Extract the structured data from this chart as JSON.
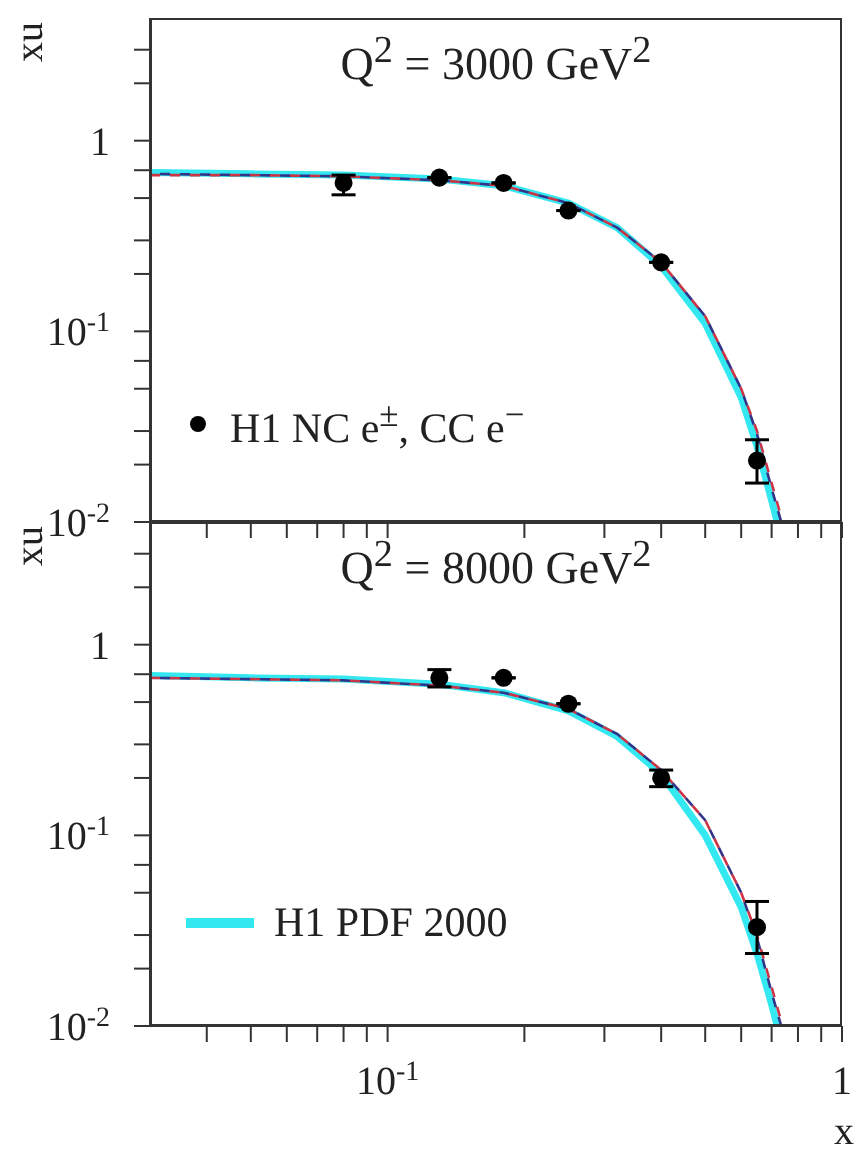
{
  "chart_data": [
    {
      "type": "line",
      "title": "Q$^{2}$ = 3000 GeV$^{2}$",
      "ylabel": "xu",
      "tick_labels": "y",
      "legend": "bottom left",
      "log": "xy",
      "xlim": [
        0.03,
        1
      ],
      "ylim": [
        0.01,
        4.4
      ],
      "xticks": [
        {
          "value": 0.04,
          "label": null
        },
        {
          "value": 0.05,
          "label": null
        },
        {
          "value": 0.06,
          "label": null
        },
        {
          "value": 0.07,
          "label": null
        },
        {
          "value": 0.08,
          "label": null
        },
        {
          "value": 0.09,
          "label": null
        },
        {
          "value": 0.1,
          "label": null
        },
        {
          "value": 0.2,
          "label": null
        },
        {
          "value": 0.3,
          "label": null
        },
        {
          "value": 0.4,
          "label": null
        },
        {
          "value": 0.5,
          "label": null
        },
        {
          "value": 0.6,
          "label": null
        },
        {
          "value": 0.7,
          "label": null
        },
        {
          "value": 0.8,
          "label": null
        },
        {
          "value": 0.9,
          "label": null
        },
        {
          "value": 1,
          "label": null
        }
      ],
      "yticks": [
        {
          "value": 0.01,
          "label": "10$^{-2}$"
        },
        {
          "value": 0.02,
          "label": null
        },
        {
          "value": 0.03,
          "label": null
        },
        {
          "value": 0.05,
          "label": null
        },
        {
          "value": 0.07,
          "label": null
        },
        {
          "value": 0.1,
          "label": "10$^{-1}$"
        },
        {
          "value": 0.2,
          "label": null
        },
        {
          "value": 0.3,
          "label": null
        },
        {
          "value": 0.5,
          "label": null
        },
        {
          "value": 0.7,
          "label": null
        },
        1,
        {
          "value": 2,
          "label": null
        },
        {
          "value": 3,
          "label": null
        }
      ],
      "series": [
        {
          "color": "#33e8f0",
          "line_style": "solid",
          "x": [
            0.03,
            0.05,
            0.08,
            0.13,
            0.18,
            0.25,
            0.32,
            0.4,
            0.5,
            0.6,
            0.65,
            0.7,
            0.72
          ],
          "values": [
            0.68,
            0.67,
            0.66,
            0.63,
            0.58,
            0.47,
            0.35,
            0.22,
            0.11,
            0.045,
            0.025,
            0.013,
            0.01
          ]
        },
        {
          "color": "#cc3344",
          "line_style": "dashed",
          "x": [
            0.03,
            0.05,
            0.08,
            0.13,
            0.18,
            0.25,
            0.32,
            0.4,
            0.5,
            0.6,
            0.65,
            0.7,
            0.74
          ],
          "values": [
            0.66,
            0.66,
            0.65,
            0.62,
            0.58,
            0.47,
            0.35,
            0.23,
            0.12,
            0.05,
            0.03,
            0.016,
            0.01
          ]
        },
        {
          "color": "#333388",
          "line_style": "dashed",
          "x": [
            0.03,
            0.05,
            0.08,
            0.13,
            0.18,
            0.25,
            0.32,
            0.4,
            0.5,
            0.6,
            0.65,
            0.7,
            0.735
          ],
          "values": [
            0.67,
            0.66,
            0.65,
            0.62,
            0.58,
            0.47,
            0.35,
            0.23,
            0.12,
            0.05,
            0.029,
            0.015,
            0.01
          ]
        },
        {
          "type": "scatter",
          "name": "H1 NC e$^{±}$, CC e$^{−}$",
          "color": "#000000",
          "marker": "circle",
          "x": [
            0.08,
            0.13,
            0.18,
            0.25,
            0.4,
            0.65
          ],
          "values": [
            0.6,
            0.64,
            0.6,
            0.43,
            0.23,
            0.021
          ],
          "errors": [
            [
              0.52,
              0.66
            ],
            null,
            null,
            null,
            null,
            [
              0.016,
              0.027
            ]
          ]
        }
      ]
    },
    {
      "type": "line",
      "title": "Q$^{2}$ = 8000 GeV$^{2}$",
      "ylabel": "xu",
      "xlabel": "x",
      "legend": "bottom left",
      "log": "xy",
      "xlim": [
        0.03,
        1
      ],
      "ylim": [
        0.01,
        4.4
      ],
      "xticks": [
        {
          "value": 0.04,
          "label": null
        },
        {
          "value": 0.05,
          "label": null
        },
        {
          "value": 0.06,
          "label": null
        },
        {
          "value": 0.07,
          "label": null
        },
        {
          "value": 0.08,
          "label": null
        },
        {
          "value": 0.09,
          "label": null
        },
        {
          "value": 0.1,
          "label": "10$^{-1}$"
        },
        {
          "value": 0.2,
          "label": null
        },
        {
          "value": 0.3,
          "label": null
        },
        {
          "value": 0.4,
          "label": null
        },
        {
          "value": 0.5,
          "label": null
        },
        {
          "value": 0.6,
          "label": null
        },
        {
          "value": 0.7,
          "label": null
        },
        {
          "value": 0.8,
          "label": null
        },
        {
          "value": 0.9,
          "label": null
        },
        1
      ],
      "yticks": [
        {
          "value": 0.01,
          "label": "10$^{-2}$"
        },
        {
          "value": 0.02,
          "label": null
        },
        {
          "value": 0.03,
          "label": null
        },
        {
          "value": 0.05,
          "label": null
        },
        {
          "value": 0.07,
          "label": null
        },
        {
          "value": 0.1,
          "label": "10$^{-1}$"
        },
        {
          "value": 0.2,
          "label": null
        },
        {
          "value": 0.3,
          "label": null
        },
        {
          "value": 0.5,
          "label": null
        },
        {
          "value": 0.7,
          "label": null
        },
        1,
        {
          "value": 2,
          "label": null
        },
        {
          "value": 3,
          "label": null
        }
      ],
      "series": [
        {
          "name": "H1 PDF 2000",
          "color": "#33e8f0",
          "line_style": "solid",
          "x": [
            0.03,
            0.05,
            0.08,
            0.13,
            0.18,
            0.25,
            0.32,
            0.4,
            0.5,
            0.6,
            0.65,
            0.7,
            0.72
          ],
          "values": [
            0.69,
            0.67,
            0.66,
            0.62,
            0.56,
            0.45,
            0.33,
            0.21,
            0.1,
            0.042,
            0.024,
            0.013,
            0.01
          ]
        },
        {
          "color": "#cc3344",
          "line_style": "dashed",
          "x": [
            0.03,
            0.05,
            0.08,
            0.13,
            0.18,
            0.25,
            0.32,
            0.4,
            0.5,
            0.6,
            0.65,
            0.7,
            0.74
          ],
          "values": [
            0.67,
            0.66,
            0.65,
            0.61,
            0.56,
            0.46,
            0.34,
            0.22,
            0.12,
            0.05,
            0.03,
            0.016,
            0.01
          ]
        },
        {
          "color": "#333388",
          "line_style": "dashed",
          "x": [
            0.03,
            0.05,
            0.08,
            0.13,
            0.18,
            0.25,
            0.32,
            0.4,
            0.5,
            0.6,
            0.65,
            0.7,
            0.735
          ],
          "values": [
            0.67,
            0.66,
            0.65,
            0.61,
            0.56,
            0.46,
            0.34,
            0.22,
            0.12,
            0.05,
            0.029,
            0.015,
            0.01
          ]
        },
        {
          "type": "scatter",
          "color": "#000000",
          "marker": "circle",
          "x": [
            0.13,
            0.18,
            0.25,
            0.4,
            0.65
          ],
          "values": [
            0.67,
            0.67,
            0.49,
            0.2,
            0.033
          ],
          "errors": [
            [
              0.6,
              0.74
            ],
            null,
            null,
            [
              0.18,
              0.22
            ],
            [
              0.024,
              0.045
            ]
          ]
        }
      ]
    }
  ]
}
